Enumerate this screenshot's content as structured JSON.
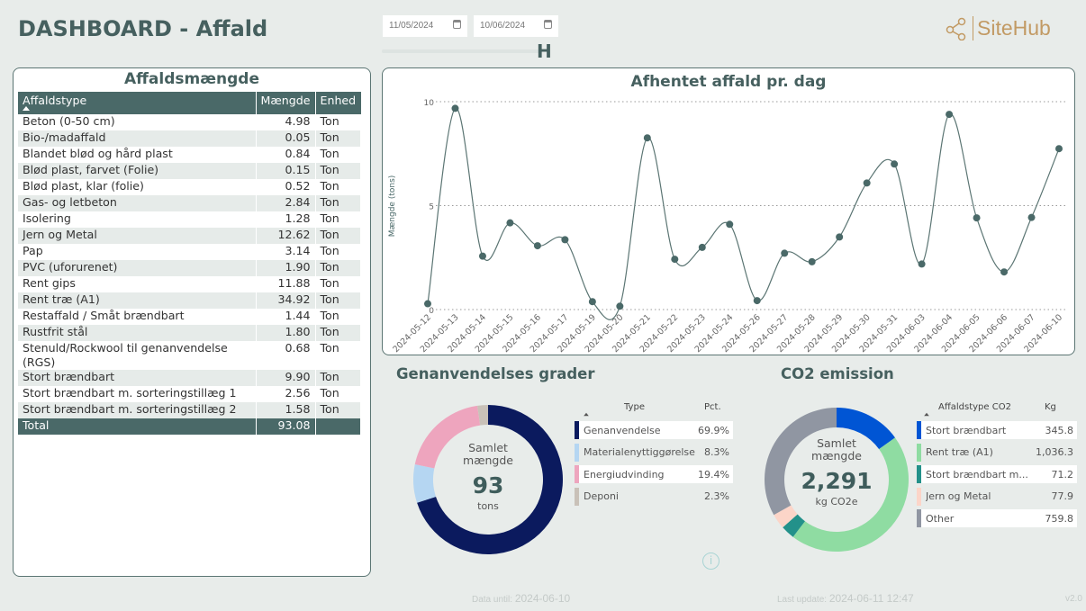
{
  "header": {
    "title": "DASHBOARD - Affald",
    "date_from": "11/05/2024",
    "date_to": "10/06/2024",
    "logo": "SiteHub"
  },
  "table": {
    "title": "Affaldsmængde",
    "columns": [
      "Affaldstype",
      "Mængde",
      "Enhed"
    ],
    "rows": [
      [
        "Beton (0-50 cm)",
        "4.98",
        "Ton"
      ],
      [
        "Bio-/madaffald",
        "0.05",
        "Ton"
      ],
      [
        "Blandet blød og hård plast",
        "0.84",
        "Ton"
      ],
      [
        "Blød plast, farvet (Folie)",
        "0.15",
        "Ton"
      ],
      [
        "Blød plast, klar (folie)",
        "0.52",
        "Ton"
      ],
      [
        "Gas- og letbeton",
        "2.84",
        "Ton"
      ],
      [
        "Isolering",
        "1.28",
        "Ton"
      ],
      [
        "Jern og Metal",
        "12.62",
        "Ton"
      ],
      [
        "Pap",
        "3.14",
        "Ton"
      ],
      [
        "PVC (uforurenet)",
        "1.90",
        "Ton"
      ],
      [
        "Rent gips",
        "11.88",
        "Ton"
      ],
      [
        "Rent træ (A1)",
        "34.92",
        "Ton"
      ],
      [
        "Restaffald / Småt brændbart",
        "1.44",
        "Ton"
      ],
      [
        "Rustfrit stål",
        "1.80",
        "Ton"
      ],
      [
        "Stenuld/Rockwool til genanvendelse (RGS)",
        "0.68",
        "Ton"
      ],
      [
        "Stort brændbart",
        "9.90",
        "Ton"
      ],
      [
        "Stort brændbart m. sorteringstillæg 1",
        "2.56",
        "Ton"
      ],
      [
        "Stort brændbart m. sorteringstillæg 2",
        "1.58",
        "Ton"
      ]
    ],
    "total": [
      "Total",
      "93.08",
      ""
    ]
  },
  "chart_data": {
    "type": "line",
    "title": "Afhentet affald pr. dag",
    "xlabel": "",
    "ylabel": "Mængde (tons)",
    "ylim": [
      0,
      10
    ],
    "yticks": [
      0,
      5,
      10
    ],
    "grid": "horizontal dotted",
    "color": "#4a6968",
    "x": [
      "2024-05-12",
      "2024-05-13",
      "2024-05-14",
      "2024-05-15",
      "2024-05-16",
      "2024-05-17",
      "2024-05-19",
      "2024-05-20",
      "2024-05-21",
      "2024-05-22",
      "2024-05-23",
      "2024-05-24",
      "2024-05-26",
      "2024-05-27",
      "2024-05-28",
      "2024-05-29",
      "2024-05-30",
      "2024-05-31",
      "2024-06-03",
      "2024-06-04",
      "2024-06-05",
      "2024-06-06",
      "2024-06-07",
      "2024-06-10"
    ],
    "values": [
      0.28,
      9.68,
      2.57,
      4.17,
      3.07,
      3.36,
      0.38,
      0.16,
      8.26,
      2.42,
      2.99,
      4.1,
      0.43,
      2.71,
      2.3,
      3.49,
      6.09,
      7.0,
      2.19,
      9.39,
      4.41,
      1.81,
      4.43,
      7.74
    ]
  },
  "recycling": {
    "title": "Genanvendelses grader",
    "center_label": "Samlet mængde",
    "center_value": "93",
    "center_unit": "tons",
    "col_type": "Type",
    "col_pct": "Pct.",
    "items": [
      {
        "label": "Genanvendelse",
        "value": "69.9%",
        "pct": 69.9,
        "color": "#0b1a5e"
      },
      {
        "label": "Materialenyttiggørelse",
        "value": "8.3%",
        "pct": 8.3,
        "color": "#b5d6f2"
      },
      {
        "label": "Energiudvinding",
        "value": "19.4%",
        "pct": 19.4,
        "color": "#eea5be"
      },
      {
        "label": "Deponi",
        "value": "2.3%",
        "pct": 2.3,
        "color": "#c9c1b8"
      }
    ]
  },
  "co2": {
    "title": "CO2 emission",
    "center_label": "Samlet mængde",
    "center_value": "2,291",
    "center_unit": "kg CO2e",
    "col_type": "Affaldstype CO2",
    "col_kg": "Kg",
    "items": [
      {
        "label": "Stort brændbart",
        "value": "345.8",
        "kg": 345.8,
        "color": "#0055d4"
      },
      {
        "label": "Rent træ (A1)",
        "value": "1,036.3",
        "kg": 1036.3,
        "color": "#8fdca2"
      },
      {
        "label": "Stort brændbart m...",
        "value": "71.2",
        "kg": 71.2,
        "color": "#23918a"
      },
      {
        "label": "Jern og Metal",
        "value": "77.9",
        "kg": 77.9,
        "color": "#fcd5c8"
      },
      {
        "label": "Other",
        "value": "759.8",
        "kg": 759.8,
        "color": "#9096a2"
      }
    ]
  },
  "footer": {
    "data_until_label": "Data until:",
    "data_until": "2024-06-10",
    "last_update_label": "Last update:",
    "last_update": "2024-06-11 12:47",
    "version": "v2.0"
  }
}
